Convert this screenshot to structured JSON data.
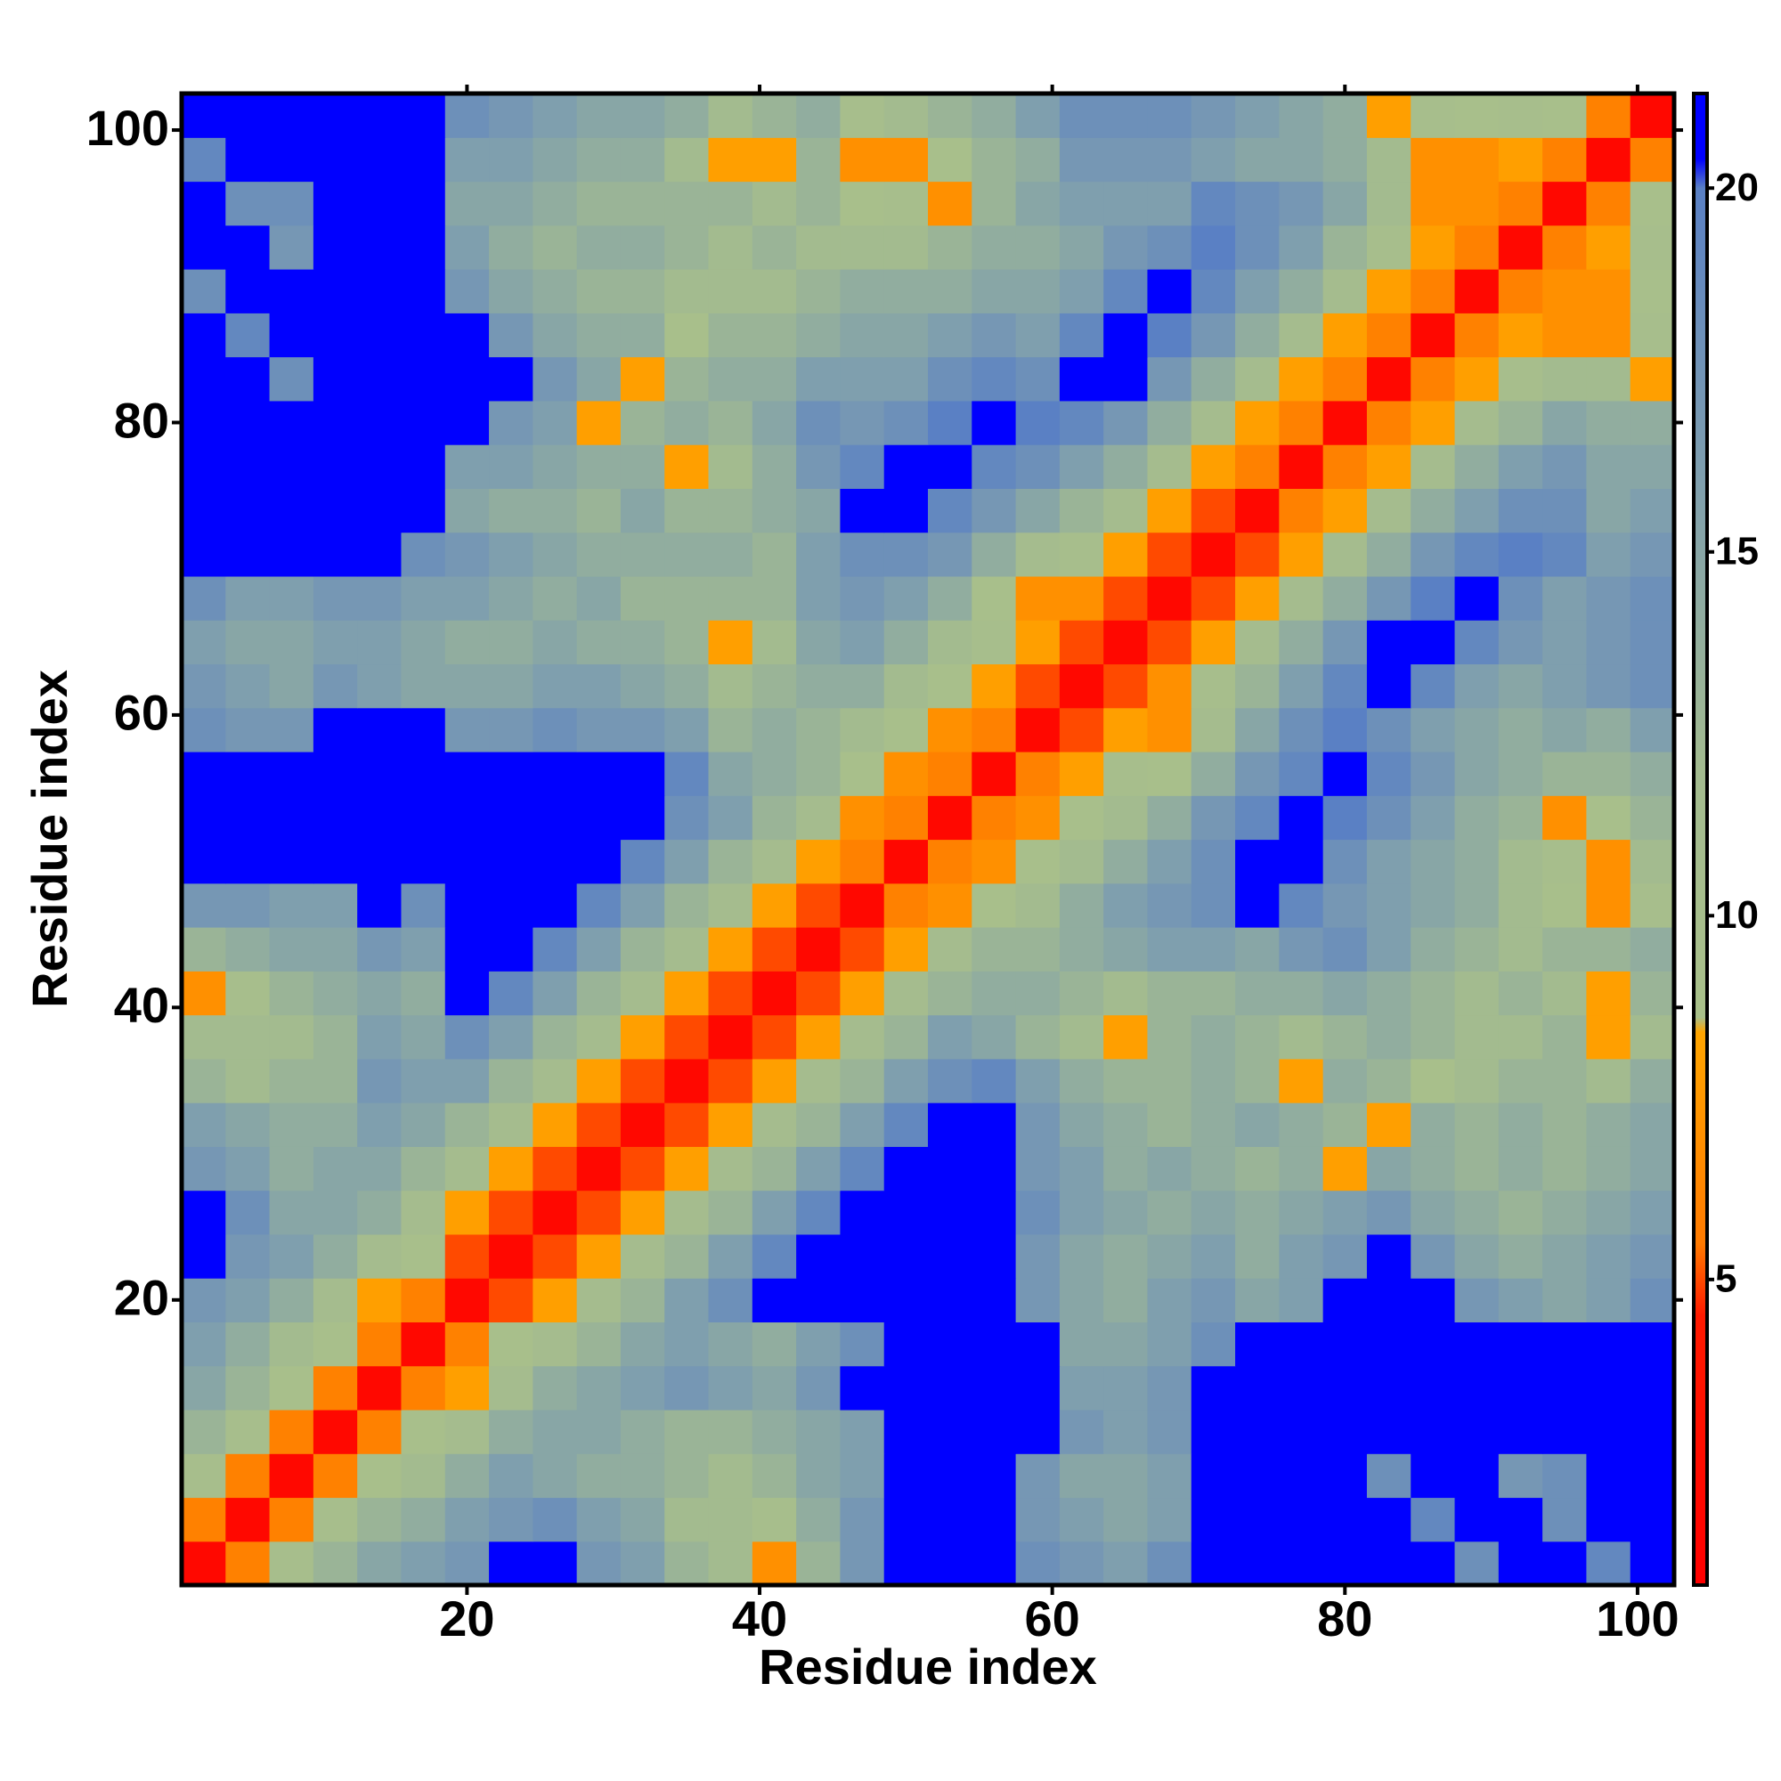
{
  "chart_data": {
    "type": "heatmap",
    "xlabel": "Residue index",
    "ylabel": "Residue index",
    "xlim": [
      0.5,
      102.5
    ],
    "ylim": [
      0.5,
      102.5
    ],
    "xticks": [
      20,
      40,
      60,
      80,
      100
    ],
    "yticks": [
      20,
      40,
      60,
      80,
      100
    ],
    "xbins": [
      0.5,
      3.5,
      6.5,
      9.5,
      12.5,
      15.5,
      18.5,
      21.5,
      24.5,
      27.5,
      30.5,
      33.5,
      36.5,
      39.5,
      42.5,
      45.5,
      48.5,
      51.5,
      54.5,
      57.5,
      60.5,
      63.5,
      66.5,
      69.5,
      72.5,
      75.5,
      78.5,
      81.5,
      84.5,
      87.5,
      90.5,
      93.5,
      96.5,
      99.5,
      102.5
    ],
    "ybins": [
      0.5,
      3.5,
      6.5,
      9.5,
      12.5,
      15.5,
      18.5,
      21.5,
      24.5,
      27.5,
      30.5,
      33.5,
      36.5,
      39.5,
      42.5,
      45.5,
      48.5,
      51.5,
      54.5,
      57.5,
      60.5,
      63.5,
      66.5,
      69.5,
      72.5,
      75.5,
      78.5,
      81.5,
      84.5,
      87.5,
      90.5,
      93.5,
      96.5,
      99.5,
      102.5
    ],
    "clim": [
      0.8,
      21.3
    ],
    "cticks": [
      5,
      10,
      15,
      20
    ],
    "colorscale": [
      {
        "value": 0.8,
        "color": "#ff0000"
      },
      {
        "value": 4.5,
        "color": "#ff1a00"
      },
      {
        "value": 5.5,
        "color": "#ff7a00"
      },
      {
        "value": 8.4,
        "color": "#ffa500"
      },
      {
        "value": 8.6,
        "color": "#a9c08a"
      },
      {
        "value": 12,
        "color": "#a3bb8f"
      },
      {
        "value": 16,
        "color": "#7f9fae"
      },
      {
        "value": 20,
        "color": "#5a80c4"
      },
      {
        "value": 20.4,
        "color": "#0000ff"
      },
      {
        "value": 21.3,
        "color": "#0000ff"
      }
    ],
    "values": [
      [
        2,
        6,
        10,
        13,
        15,
        16,
        17,
        21,
        21,
        17,
        16,
        13,
        12,
        7,
        13,
        17,
        21,
        21,
        21,
        18,
        17,
        16,
        18,
        21,
        21,
        21,
        21,
        21,
        21,
        18,
        21,
        21,
        19,
        21
      ],
      [
        6,
        2,
        6,
        10,
        13,
        14,
        16,
        17,
        18,
        16,
        15,
        12,
        12,
        10,
        14,
        17,
        21,
        21,
        21,
        17,
        16,
        15,
        16,
        21,
        21,
        21,
        21,
        21,
        19,
        21,
        21,
        18,
        21,
        21
      ],
      [
        10,
        6,
        2,
        6,
        9,
        12,
        14,
        16,
        15,
        14,
        14,
        13,
        12,
        13,
        15,
        16,
        21,
        21,
        21,
        17,
        15,
        15,
        16,
        21,
        21,
        21,
        21,
        18,
        21,
        21,
        17,
        18,
        21,
        21
      ],
      [
        13,
        10,
        6,
        2,
        6,
        9,
        11,
        14,
        15,
        15,
        14,
        13,
        13,
        14,
        15,
        16,
        21,
        21,
        21,
        21,
        17,
        16,
        17,
        21,
        21,
        21,
        21,
        21,
        21,
        21,
        21,
        21,
        21,
        21
      ],
      [
        15,
        13,
        9,
        6,
        2,
        6,
        8,
        11,
        14,
        15,
        16,
        17,
        16,
        15,
        17,
        21,
        21,
        21,
        21,
        21,
        16,
        16,
        17,
        21,
        21,
        21,
        21,
        21,
        21,
        21,
        21,
        21,
        21,
        21
      ],
      [
        16,
        14,
        12,
        9,
        6,
        2,
        6,
        9,
        11,
        13,
        15,
        16,
        15,
        14,
        16,
        18,
        21,
        21,
        21,
        21,
        15,
        15,
        16,
        18,
        21,
        21,
        21,
        21,
        21,
        21,
        21,
        21,
        21,
        21
      ],
      [
        17,
        16,
        14,
        11,
        8,
        6,
        2,
        5,
        8,
        11,
        13,
        16,
        18,
        21,
        21,
        21,
        21,
        21,
        21,
        17,
        15,
        14,
        16,
        17,
        15,
        16,
        21,
        21,
        21,
        17,
        16,
        15,
        16,
        18
      ],
      [
        21,
        17,
        16,
        14,
        11,
        9,
        5,
        2,
        5,
        8,
        11,
        13,
        16,
        19,
        21,
        21,
        21,
        21,
        21,
        17,
        15,
        14,
        15,
        16,
        14,
        16,
        17,
        21,
        17,
        15,
        14,
        15,
        16,
        17
      ],
      [
        21,
        18,
        15,
        15,
        14,
        11,
        8,
        5,
        2,
        5,
        8,
        11,
        13,
        16,
        19,
        21,
        21,
        21,
        21,
        18,
        16,
        15,
        14,
        15,
        14,
        15,
        16,
        17,
        15,
        14,
        13,
        14,
        15,
        16
      ],
      [
        17,
        16,
        14,
        15,
        15,
        13,
        11,
        8,
        5,
        2,
        5,
        8,
        11,
        13,
        16,
        19,
        21,
        21,
        21,
        17,
        16,
        14,
        15,
        14,
        13,
        14,
        8,
        15,
        14,
        13,
        14,
        13,
        14,
        15
      ],
      [
        16,
        15,
        14,
        14,
        16,
        15,
        13,
        11,
        8,
        5,
        2,
        5,
        8,
        11,
        13,
        16,
        19,
        21,
        21,
        17,
        15,
        14,
        13,
        14,
        15,
        14,
        13,
        8,
        14,
        13,
        14,
        13,
        14,
        15
      ],
      [
        13,
        12,
        13,
        13,
        17,
        16,
        16,
        13,
        11,
        8,
        5,
        2,
        5,
        8,
        11,
        13,
        16,
        18,
        19,
        16,
        14,
        13,
        13,
        14,
        13,
        8,
        14,
        13,
        9,
        12,
        13,
        13,
        12,
        14
      ],
      [
        12,
        12,
        12,
        13,
        16,
        15,
        18,
        16,
        13,
        11,
        8,
        5,
        2,
        5,
        8,
        11,
        13,
        16,
        15,
        13,
        12,
        8,
        13,
        14,
        13,
        12,
        13,
        14,
        13,
        12,
        12,
        13,
        8,
        12
      ],
      [
        7,
        10,
        13,
        14,
        15,
        14,
        21,
        19,
        16,
        13,
        11,
        8,
        5,
        2,
        5,
        8,
        11,
        13,
        14,
        14,
        13,
        12,
        13,
        13,
        14,
        14,
        15,
        14,
        13,
        12,
        13,
        12,
        8,
        13
      ],
      [
        13,
        14,
        15,
        15,
        17,
        16,
        21,
        21,
        19,
        16,
        13,
        11,
        8,
        5,
        2,
        5,
        8,
        11,
        13,
        13,
        14,
        15,
        16,
        16,
        15,
        17,
        18,
        16,
        14,
        13,
        12,
        13,
        13,
        14
      ],
      [
        17,
        17,
        16,
        16,
        21,
        18,
        21,
        21,
        21,
        19,
        16,
        13,
        11,
        8,
        5,
        2,
        6,
        7,
        9,
        12,
        14,
        16,
        17,
        18,
        21,
        19,
        17,
        16,
        15,
        14,
        12,
        9,
        7,
        10
      ],
      [
        21,
        21,
        21,
        21,
        21,
        21,
        21,
        21,
        21,
        21,
        19,
        16,
        13,
        11,
        8,
        6,
        2,
        6,
        7,
        9,
        12,
        14,
        16,
        18,
        21,
        21,
        18,
        16,
        15,
        14,
        12,
        10,
        7,
        12
      ],
      [
        21,
        21,
        21,
        21,
        21,
        21,
        21,
        21,
        21,
        21,
        21,
        18,
        16,
        13,
        11,
        7,
        6,
        2,
        6,
        7,
        9,
        12,
        14,
        17,
        19,
        21,
        20,
        18,
        16,
        14,
        13,
        7,
        9,
        13
      ],
      [
        21,
        21,
        21,
        21,
        21,
        21,
        21,
        21,
        21,
        21,
        21,
        19,
        15,
        14,
        13,
        9,
        7,
        6,
        2,
        6,
        8,
        10,
        9,
        14,
        17,
        19,
        21,
        19,
        17,
        15,
        14,
        13,
        13,
        14
      ],
      [
        18,
        17,
        17,
        21,
        21,
        21,
        17,
        17,
        18,
        17,
        17,
        16,
        13,
        14,
        13,
        12,
        9,
        7,
        6,
        2,
        5,
        8,
        7,
        11,
        15,
        18,
        20,
        18,
        16,
        15,
        14,
        15,
        14,
        16
      ],
      [
        17,
        16,
        15,
        17,
        16,
        15,
        15,
        15,
        16,
        16,
        15,
        14,
        12,
        13,
        14,
        14,
        12,
        9,
        8,
        5,
        2,
        5,
        7,
        10,
        13,
        16,
        19,
        21,
        19,
        16,
        15,
        16,
        17,
        18
      ],
      [
        16,
        15,
        15,
        16,
        16,
        15,
        14,
        14,
        15,
        14,
        14,
        13,
        8,
        12,
        15,
        16,
        14,
        12,
        10,
        8,
        5,
        2,
        5,
        8,
        11,
        14,
        17,
        21,
        21,
        19,
        17,
        16,
        17,
        18
      ],
      [
        18,
        16,
        16,
        17,
        17,
        16,
        16,
        15,
        14,
        15,
        13,
        13,
        13,
        13,
        16,
        17,
        16,
        14,
        9,
        7,
        7,
        5,
        2,
        5,
        8,
        11,
        14,
        17,
        20,
        21,
        18,
        16,
        17,
        18
      ],
      [
        21,
        21,
        21,
        21,
        21,
        18,
        17,
        16,
        15,
        14,
        14,
        14,
        14,
        13,
        16,
        18,
        18,
        17,
        14,
        11,
        10,
        8,
        5,
        2,
        5,
        8,
        11,
        14,
        17,
        19,
        20,
        19,
        16,
        17
      ],
      [
        21,
        21,
        21,
        21,
        21,
        21,
        15,
        14,
        14,
        13,
        15,
        13,
        13,
        14,
        15,
        21,
        21,
        19,
        17,
        15,
        13,
        11,
        8,
        5,
        2,
        6,
        8,
        11,
        14,
        16,
        18,
        18,
        15,
        16
      ],
      [
        21,
        21,
        21,
        21,
        21,
        21,
        16,
        16,
        15,
        14,
        14,
        8,
        12,
        14,
        17,
        19,
        21,
        21,
        19,
        18,
        16,
        14,
        11,
        8,
        6,
        2,
        6,
        8,
        11,
        14,
        16,
        17,
        15,
        15
      ],
      [
        21,
        21,
        21,
        21,
        21,
        21,
        21,
        17,
        16,
        8,
        13,
        14,
        13,
        15,
        18,
        17,
        18,
        20,
        21,
        20,
        19,
        17,
        14,
        11,
        8,
        6,
        2,
        6,
        8,
        11,
        13,
        15,
        14,
        14
      ],
      [
        21,
        21,
        18,
        21,
        21,
        21,
        21,
        21,
        17,
        15,
        8,
        13,
        14,
        14,
        16,
        16,
        16,
        18,
        19,
        18,
        21,
        21,
        17,
        14,
        11,
        8,
        6,
        2,
        6,
        8,
        10,
        12,
        12,
        8
      ],
      [
        21,
        19,
        21,
        21,
        21,
        21,
        21,
        17,
        15,
        14,
        14,
        9,
        13,
        13,
        14,
        15,
        15,
        16,
        17,
        16,
        19,
        21,
        20,
        17,
        14,
        11,
        8,
        6,
        2,
        6,
        8,
        7,
        7,
        10
      ],
      [
        18,
        21,
        21,
        21,
        21,
        21,
        17,
        15,
        14,
        13,
        13,
        12,
        12,
        12,
        13,
        14,
        14,
        14,
        15,
        15,
        16,
        19,
        21,
        19,
        16,
        14,
        11,
        8,
        6,
        2,
        6,
        7,
        7,
        9
      ],
      [
        21,
        21,
        17,
        21,
        21,
        21,
        16,
        14,
        13,
        14,
        14,
        13,
        12,
        13,
        12,
        12,
        12,
        13,
        14,
        14,
        15,
        17,
        18,
        20,
        18,
        16,
        13,
        10,
        8,
        6,
        2,
        6,
        8,
        10
      ],
      [
        21,
        18,
        18,
        21,
        21,
        21,
        15,
        15,
        14,
        13,
        13,
        13,
        13,
        12,
        13,
        9,
        10,
        7,
        13,
        15,
        16,
        16,
        16,
        19,
        18,
        17,
        15,
        12,
        7,
        7,
        6,
        2,
        6,
        9
      ],
      [
        19,
        21,
        21,
        21,
        21,
        21,
        16,
        16,
        15,
        14,
        14,
        12,
        8,
        8,
        13,
        7,
        7,
        9,
        13,
        14,
        17,
        17,
        17,
        16,
        15,
        15,
        14,
        12,
        7,
        7,
        8,
        6,
        2,
        6
      ],
      [
        21,
        21,
        21,
        21,
        21,
        21,
        18,
        17,
        16,
        15,
        15,
        14,
        12,
        13,
        14,
        10,
        12,
        13,
        14,
        16,
        18,
        18,
        18,
        17,
        16,
        15,
        14,
        8,
        10,
        9,
        10,
        9,
        6,
        2
      ]
    ]
  }
}
